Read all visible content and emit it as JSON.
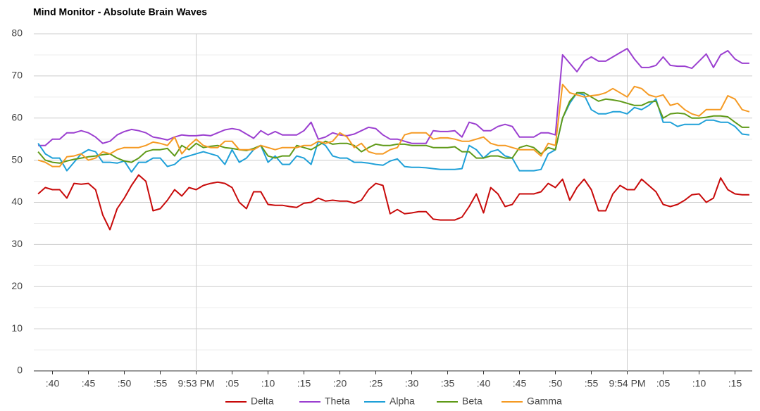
{
  "chart_data": {
    "type": "line",
    "title": "Mind Monitor - Absolute Brain Waves",
    "x": [
      38,
      39,
      40,
      41,
      42,
      43,
      44,
      45,
      46,
      47,
      48,
      49,
      50,
      51,
      52,
      53,
      54,
      55,
      56,
      57,
      58,
      59,
      60,
      61,
      62,
      63,
      64,
      65,
      66,
      67,
      68,
      69,
      70,
      71,
      72,
      73,
      74,
      75,
      76,
      77,
      78,
      79,
      80,
      81,
      82,
      83,
      84,
      85,
      86,
      87,
      88,
      89,
      90,
      91,
      92,
      93,
      94,
      95,
      96,
      97,
      98,
      99,
      100,
      101,
      102,
      103,
      104,
      105,
      106,
      107,
      108,
      109,
      110,
      111,
      112,
      113,
      114,
      115,
      116,
      117,
      118,
      119,
      120,
      121,
      122,
      123,
      124,
      125,
      126,
      127,
      128,
      129,
      130,
      131,
      132,
      133,
      134,
      135,
      136,
      137
    ],
    "series": [
      {
        "name": "Delta",
        "color": "#c80a0a",
        "values": [
          42,
          43.5,
          43,
          43,
          41,
          44.5,
          44.3,
          44.5,
          43,
          37,
          33.5,
          38.5,
          41,
          44,
          46.5,
          45,
          38,
          38.5,
          40.5,
          43,
          41.5,
          43.5,
          43,
          44,
          44.5,
          44.8,
          44.5,
          43.5,
          40,
          38.5,
          42.5,
          42.5,
          39.5,
          39.3,
          39.3,
          39,
          38.8,
          39.8,
          40,
          41,
          40.3,
          40.5,
          40.3,
          40.3,
          39.8,
          40.5,
          43,
          44.5,
          44,
          37.3,
          38.3,
          37.3,
          37.5,
          37.8,
          37.8,
          36,
          35.8,
          35.8,
          35.8,
          36.5,
          39,
          42,
          37.5,
          43.5,
          42,
          39,
          39.5,
          42,
          42,
          42,
          42.5,
          44.5,
          43.5,
          45.5,
          40.5,
          43.5,
          45.5,
          43,
          38,
          38,
          42,
          44,
          43,
          43,
          45.5,
          44,
          42.5,
          39.5,
          39,
          39.5,
          40.5,
          41.8,
          42,
          40,
          41,
          45.8,
          43,
          42,
          41.8,
          41.8
        ]
      },
      {
        "name": "Theta",
        "color": "#9b3fd0",
        "values": [
          53.5,
          53.5,
          55,
          55,
          56.5,
          56.5,
          57,
          56.5,
          55.5,
          54,
          54.5,
          56,
          56.8,
          57.3,
          57,
          56.5,
          55.5,
          55.2,
          54.8,
          55.5,
          56,
          55.8,
          55.8,
          56,
          55.8,
          56.5,
          57.2,
          57.5,
          57.2,
          56.2,
          55.2,
          57,
          56,
          56.8,
          56,
          56,
          56,
          57,
          59,
          55,
          55.5,
          56.5,
          56,
          55.8,
          56.2,
          57,
          57.8,
          57.5,
          56,
          55,
          55,
          54.5,
          54,
          54,
          54,
          57,
          56.8,
          56.8,
          57,
          55.5,
          59,
          58.5,
          57,
          57,
          58,
          58.5,
          58,
          55.5,
          55.5,
          55.5,
          56.5,
          56.5,
          56,
          75,
          73,
          71,
          73.5,
          74.5,
          73.5,
          73.5,
          74.5,
          75.5,
          76.5,
          74,
          72,
          72,
          72.5,
          74.5,
          72.5,
          72.3,
          72.3,
          71.8,
          73.5,
          75.2,
          72,
          75,
          76,
          74,
          73,
          73
        ]
      },
      {
        "name": "Alpha",
        "color": "#1fa0d8",
        "values": [
          54,
          51.5,
          50.5,
          50.5,
          47.5,
          49.5,
          51.5,
          52.5,
          52,
          49.5,
          49.5,
          49.3,
          49.8,
          47.2,
          49.5,
          49.5,
          50.5,
          50.5,
          48.5,
          49,
          50.5,
          51,
          51.5,
          52,
          51.5,
          51,
          49,
          52.5,
          49.5,
          50.5,
          52.5,
          53.5,
          49.5,
          51,
          49,
          49,
          51,
          50.5,
          49,
          54.5,
          53.5,
          51,
          50.5,
          50.5,
          49.5,
          49.5,
          49.3,
          49,
          48.8,
          49.8,
          50.3,
          48.5,
          48.3,
          48.3,
          48.2,
          48,
          47.8,
          47.8,
          47.8,
          48,
          53.5,
          52.5,
          50.5,
          52,
          52.5,
          51,
          50.5,
          47.5,
          47.5,
          47.5,
          47.8,
          51.5,
          52.5,
          60,
          63.5,
          66,
          65.5,
          62,
          61,
          61,
          61.5,
          61.5,
          61,
          62.5,
          62,
          63,
          64.5,
          59,
          59,
          58,
          58.5,
          58.5,
          58.5,
          59.5,
          59.5,
          59,
          59,
          58,
          56.2,
          56
        ]
      },
      {
        "name": "Beta",
        "color": "#5f9a18",
        "values": [
          52,
          50,
          49.5,
          49.3,
          49.8,
          50.2,
          50.5,
          50.8,
          51,
          51.3,
          51.5,
          50.5,
          49.8,
          49.5,
          50.5,
          52,
          52.5,
          52.5,
          52.8,
          51,
          53.5,
          52.5,
          54,
          53,
          53.3,
          53.5,
          53,
          52.8,
          52.5,
          52.3,
          52.8,
          53.5,
          51,
          50.5,
          51,
          51,
          53.5,
          53,
          52.5,
          53.5,
          54.5,
          53.8,
          54,
          54,
          53.5,
          52,
          53,
          53.8,
          53.5,
          53.5,
          53.8,
          53.8,
          53.5,
          53.5,
          53.5,
          53,
          53,
          53,
          53.2,
          52,
          52,
          50.5,
          50.5,
          51,
          51,
          50.5,
          50.5,
          53,
          53.5,
          53,
          51.5,
          53,
          52.5,
          60,
          64,
          66,
          66,
          65,
          64,
          64.5,
          64.3,
          64,
          63.5,
          63,
          63,
          63.8,
          64,
          60,
          61,
          61.2,
          61,
          60,
          60,
          60.2,
          60.5,
          60.5,
          60.3,
          59,
          57.8,
          57.8
        ]
      },
      {
        "name": "Gamma",
        "color": "#f59a23",
        "values": [
          50,
          49.5,
          48.5,
          48.5,
          50.8,
          51,
          51.5,
          50,
          50.5,
          52,
          51.5,
          52.5,
          53,
          53,
          53,
          53.5,
          54.3,
          54,
          53.5,
          55.5,
          51.5,
          53.5,
          55,
          53.5,
          53,
          53,
          54.5,
          54.5,
          52.5,
          52.5,
          52.5,
          53.5,
          53,
          52.5,
          53,
          53,
          53,
          53.5,
          53.5,
          54.5,
          54,
          54.5,
          56.5,
          55.5,
          53,
          54,
          52,
          51.5,
          51.5,
          52.5,
          53,
          56,
          56.5,
          56.5,
          56.5,
          55,
          55.3,
          55.3,
          55,
          54.5,
          54.5,
          55,
          55.5,
          54,
          53.5,
          53.5,
          53,
          52.5,
          52.5,
          52.5,
          51,
          54,
          53.5,
          68,
          66,
          65.5,
          65,
          65.3,
          65.5,
          66,
          67,
          66,
          65,
          67.5,
          67,
          65.5,
          65,
          65.5,
          63,
          63.5,
          62,
          61,
          60.5,
          62,
          62,
          62,
          65.3,
          64.5,
          62,
          61.5
        ]
      }
    ],
    "xlim": [
      37.4,
      137.4
    ],
    "xticks": [
      {
        "value": 40,
        "label": ":40"
      },
      {
        "value": 45,
        "label": ":45"
      },
      {
        "value": 50,
        "label": ":50"
      },
      {
        "value": 55,
        "label": ":55"
      },
      {
        "value": 60,
        "label": "9:53 PM"
      },
      {
        "value": 65,
        "label": ":05"
      },
      {
        "value": 70,
        "label": ":10"
      },
      {
        "value": 75,
        "label": ":15"
      },
      {
        "value": 80,
        "label": ":20"
      },
      {
        "value": 85,
        "label": ":25"
      },
      {
        "value": 90,
        "label": ":30"
      },
      {
        "value": 95,
        "label": ":35"
      },
      {
        "value": 100,
        "label": ":40"
      },
      {
        "value": 105,
        "label": ":45"
      },
      {
        "value": 110,
        "label": ":50"
      },
      {
        "value": 115,
        "label": ":55"
      },
      {
        "value": 120,
        "label": "9:54 PM"
      },
      {
        "value": 125,
        "label": ":05"
      },
      {
        "value": 130,
        "label": ":10"
      },
      {
        "value": 135,
        "label": ":15"
      }
    ],
    "ylim": [
      0,
      80
    ],
    "yticks": [
      0,
      10,
      20,
      30,
      40,
      50,
      60,
      70,
      80
    ],
    "grid": true,
    "legend": "bottom"
  }
}
